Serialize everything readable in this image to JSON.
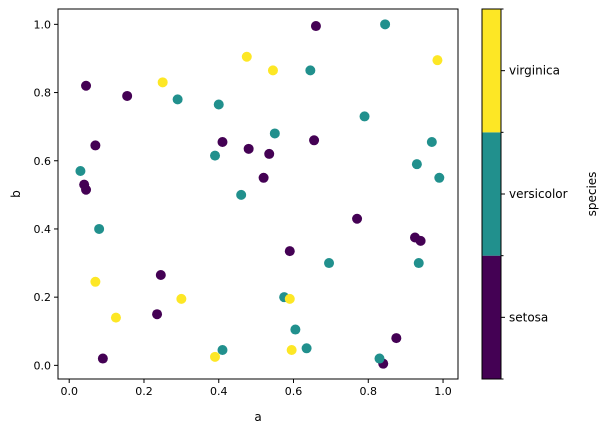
{
  "chart_data": {
    "type": "scatter",
    "xlabel": "a",
    "ylabel": "b",
    "xlim": [
      -0.03,
      1.04
    ],
    "ylim": [
      -0.04,
      1.045
    ],
    "xticks": [
      "0.0",
      "0.2",
      "0.4",
      "0.6",
      "0.8",
      "1.0"
    ],
    "yticks": [
      "0.0",
      "0.2",
      "0.4",
      "0.6",
      "0.8",
      "1.0"
    ],
    "grid": false,
    "colorbar": {
      "label": "species",
      "categories": [
        "setosa",
        "versicolor",
        "virginica"
      ],
      "colors": [
        "#440154",
        "#21908d",
        "#fde725"
      ]
    },
    "series": [
      {
        "name": "setosa",
        "color": "#440154",
        "points": [
          [
            0.04,
            0.53
          ],
          [
            0.045,
            0.515
          ],
          [
            0.045,
            0.82
          ],
          [
            0.07,
            0.645
          ],
          [
            0.09,
            0.02
          ],
          [
            0.155,
            0.79
          ],
          [
            0.235,
            0.15
          ],
          [
            0.245,
            0.265
          ],
          [
            0.41,
            0.655
          ],
          [
            0.48,
            0.635
          ],
          [
            0.52,
            0.55
          ],
          [
            0.535,
            0.62
          ],
          [
            0.59,
            0.335
          ],
          [
            0.655,
            0.66
          ],
          [
            0.66,
            0.995
          ],
          [
            0.77,
            0.43
          ],
          [
            0.84,
            0.005
          ],
          [
            0.875,
            0.08
          ],
          [
            0.925,
            0.375
          ],
          [
            0.94,
            0.365
          ]
        ]
      },
      {
        "name": "versicolor",
        "color": "#21908d",
        "points": [
          [
            0.03,
            0.57
          ],
          [
            0.08,
            0.4
          ],
          [
            0.29,
            0.78
          ],
          [
            0.39,
            0.615
          ],
          [
            0.4,
            0.765
          ],
          [
            0.41,
            0.045
          ],
          [
            0.46,
            0.5
          ],
          [
            0.55,
            0.68
          ],
          [
            0.575,
            0.2
          ],
          [
            0.605,
            0.105
          ],
          [
            0.635,
            0.05
          ],
          [
            0.645,
            0.865
          ],
          [
            0.695,
            0.3
          ],
          [
            0.79,
            0.73
          ],
          [
            0.83,
            0.02
          ],
          [
            0.845,
            1.0
          ],
          [
            0.93,
            0.59
          ],
          [
            0.935,
            0.3
          ],
          [
            0.97,
            0.655
          ],
          [
            0.99,
            0.55
          ]
        ]
      },
      {
        "name": "virginica",
        "color": "#fde725",
        "points": [
          [
            0.07,
            0.245
          ],
          [
            0.125,
            0.14
          ],
          [
            0.25,
            0.83
          ],
          [
            0.3,
            0.195
          ],
          [
            0.39,
            0.025
          ],
          [
            0.475,
            0.905
          ],
          [
            0.545,
            0.865
          ],
          [
            0.59,
            0.195
          ],
          [
            0.595,
            0.045
          ],
          [
            0.985,
            0.895
          ]
        ]
      }
    ]
  }
}
